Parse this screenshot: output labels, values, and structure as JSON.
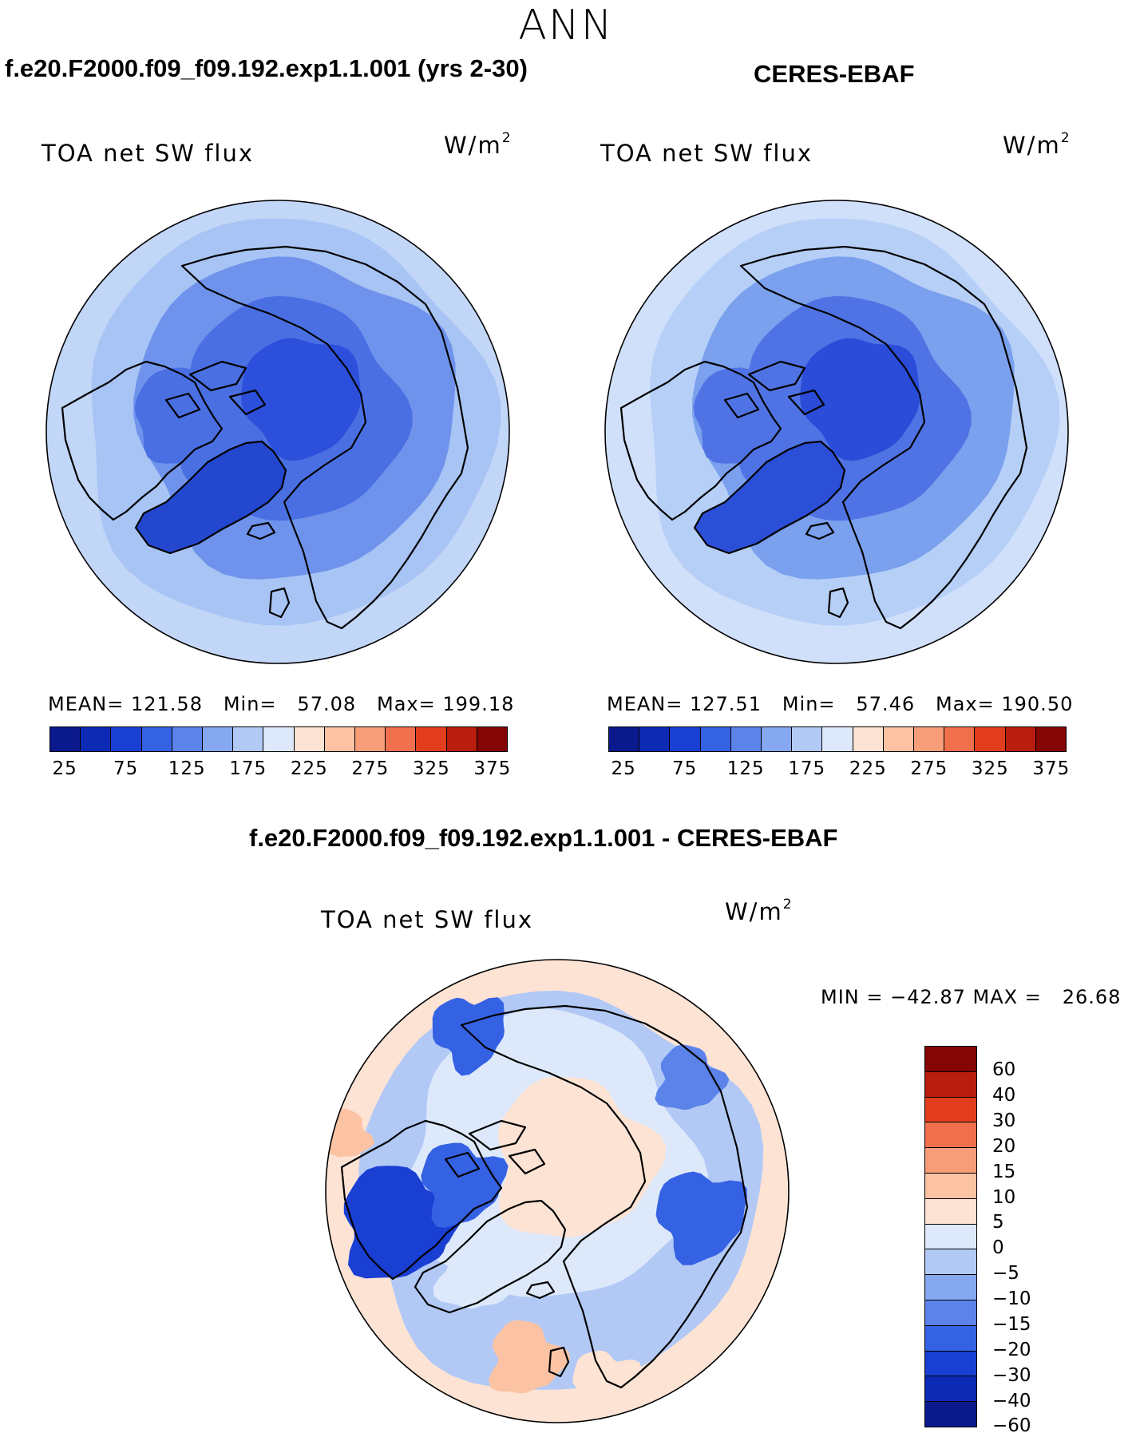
{
  "figure": {
    "season": "ANN",
    "panels": [
      {
        "title": "f.e20.F2000.f09_f09.192.exp1.1.001 (yrs 2-30)",
        "variable": "TOA net SW flux",
        "units_base": "W/m",
        "units_exp": "2",
        "stats": "MEAN= 121.58   Min=   57.08   Max= 199.18",
        "colors": {
          "outer": "#a8c4f5",
          "mid": "#6f93ec",
          "inner": "#4a6fe3",
          "core": "#2c50db",
          "greenland": "#2447cf",
          "edge": "#c2d6f8"
        }
      },
      {
        "title": "CERES-EBAF",
        "variable": "TOA net SW flux",
        "units_base": "W/m",
        "units_exp": "2",
        "stats": "MEAN= 127.51   Min=   57.46   Max= 190.50",
        "colors": {
          "outer": "#b6cff7",
          "mid": "#7aa0ee",
          "inner": "#4f73e4",
          "core": "#2a4cd8",
          "greenland": "#2b4fd7",
          "edge": "#d0e0fa"
        }
      }
    ],
    "main_colorbar": {
      "colors": [
        "#0a1a8c",
        "#0d2ab5",
        "#1a3fd3",
        "#3561e3",
        "#5b83ea",
        "#86a8f0",
        "#b2c9f6",
        "#dde9fb",
        "#fde3d4",
        "#fbc3a4",
        "#f79d78",
        "#f0704d",
        "#e23e1e",
        "#b81d0e",
        "#840505"
      ],
      "tick_labels": [
        "25",
        "75",
        "125",
        "175",
        "225",
        "275",
        "325",
        "375"
      ]
    },
    "difference": {
      "title": "f.e20.F2000.f09_f09.192.exp1.1.001 - CERES-EBAF",
      "variable": "TOA net SW flux",
      "units_base": "W/m",
      "units_exp": "2",
      "stats": "MIN = −42.87 MAX =   26.68",
      "colorbar": {
        "colors": [
          "#840505",
          "#b81d0e",
          "#e23e1e",
          "#f0704d",
          "#f79d78",
          "#fbc3a4",
          "#fde3d4",
          "#dde9fb",
          "#b2c9f6",
          "#86a8f0",
          "#5b83ea",
          "#3561e3",
          "#1a3fd3",
          "#0d2ab5",
          "#0a1a8c"
        ],
        "tick_labels": [
          "60",
          "40",
          "30",
          "20",
          "15",
          "10",
          "5",
          "0",
          "−5",
          "−10",
          "−15",
          "−20",
          "−30",
          "−40",
          "−60"
        ]
      }
    }
  }
}
